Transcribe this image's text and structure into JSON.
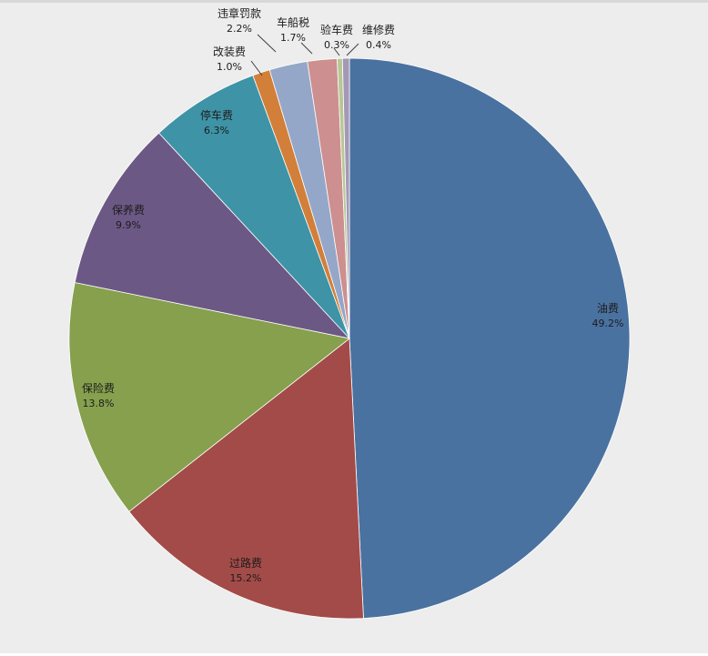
{
  "chart_data": {
    "type": "pie",
    "title": "",
    "legend": "none",
    "start_angle_deg": 0,
    "direction": "clockwise",
    "slices": [
      {
        "label": "油费",
        "value": 49.2,
        "percent_text": "49.2%",
        "color": "#4a72a0"
      },
      {
        "label": "过路费",
        "value": 15.2,
        "percent_text": "15.2%",
        "color": "#a34b48"
      },
      {
        "label": "保险费",
        "value": 13.8,
        "percent_text": "13.8%",
        "color": "#86a04e"
      },
      {
        "label": "保养费",
        "value": 9.9,
        "percent_text": "9.9%",
        "color": "#6c5885"
      },
      {
        "label": "停车费",
        "value": 6.3,
        "percent_text": "6.3%",
        "color": "#3f93a6"
      },
      {
        "label": "改装费",
        "value": 1.0,
        "percent_text": "1.0%",
        "color": "#d27f3a"
      },
      {
        "label": "违章罚款",
        "value": 2.2,
        "percent_text": "2.2%",
        "color": "#94a7c8"
      },
      {
        "label": "车船税",
        "value": 1.7,
        "percent_text": "1.7%",
        "color": "#cd8f8f"
      },
      {
        "label": "验车费",
        "value": 0.3,
        "percent_text": "0.3%",
        "color": "#b7c895"
      },
      {
        "label": "维修费",
        "value": 0.4,
        "percent_text": "0.4%",
        "color": "#a598b6"
      }
    ]
  }
}
